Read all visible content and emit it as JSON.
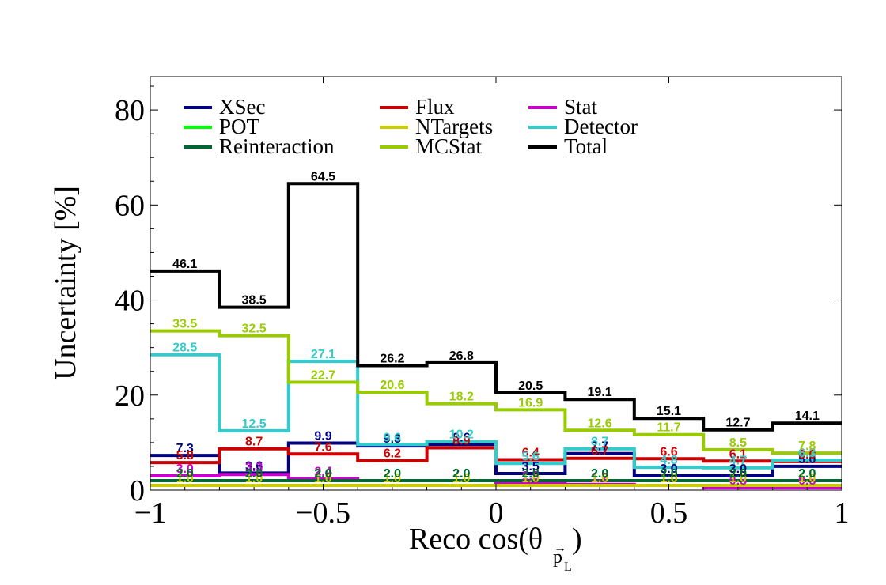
{
  "chart_data": {
    "type": "line",
    "step": true,
    "xlabel": "Reco cos(θ",
    "xlabel_subscript": "p",
    "xlabel_subsubscript": "L",
    "xlabel_close": ")",
    "ylabel": "Uncertainty [%]",
    "xlim": [
      -1,
      1
    ],
    "ylim": [
      0,
      87
    ],
    "xticks": [
      -1,
      -0.5,
      0,
      0.5,
      1
    ],
    "xtick_labels": [
      "−1",
      "−0.5",
      "0",
      "0.5",
      "1"
    ],
    "yticks": [
      0,
      20,
      40,
      60,
      80
    ],
    "ytick_labels": [
      "0",
      "20",
      "40",
      "60",
      "80"
    ],
    "bin_edges": [
      -1,
      -0.8,
      -0.6,
      -0.4,
      -0.2,
      0,
      0.2,
      0.4,
      0.6,
      0.8,
      1
    ],
    "legend_placement": "top",
    "series": [
      {
        "name": "XSec",
        "color": "#000080",
        "values": [
          7.3,
          3.6,
          9.9,
          9.3,
          9.6,
          3.5,
          7.7,
          3.0,
          3.0,
          5.0
        ],
        "labels": [
          "7.3",
          "3.6",
          "9.9",
          "9.3",
          "9.6",
          "3.5",
          "7.7",
          "3.0",
          "3.0",
          "5.0"
        ]
      },
      {
        "name": "Flux",
        "color": "#cc0000",
        "values": [
          5.8,
          8.7,
          7.6,
          6.2,
          8.9,
          6.4,
          6.7,
          6.6,
          6.1,
          6.0
        ],
        "labels": [
          "5.8",
          "8.7",
          "7.6",
          "6.2",
          "8.9",
          "6.4",
          "6.7",
          "6.6",
          "6.1",
          "6.0"
        ]
      },
      {
        "name": "Stat",
        "color": "#cc00cc",
        "values": [
          3.0,
          3.3,
          2.4,
          2.0,
          2.0,
          1.5,
          1.2,
          1.0,
          0.5,
          0.5
        ],
        "labels": [
          "3.0",
          "3.3",
          "2.4",
          "2.0",
          "2.0",
          "1.5",
          "1.2",
          "1.0",
          "0.5",
          "0.5"
        ]
      },
      {
        "name": "POT",
        "color": "#00ff00",
        "values": [
          2.0,
          2.0,
          2.0,
          2.0,
          2.0,
          2.0,
          2.0,
          2.0,
          2.0,
          2.0
        ],
        "labels": [
          "2.0",
          "2.0",
          "2.0",
          "2.0",
          "2.0",
          "2.0",
          "2.0",
          "2.0",
          "2.0",
          "2.0"
        ]
      },
      {
        "name": "NTargets",
        "color": "#cccc00",
        "values": [
          1.0,
          1.0,
          1.0,
          1.0,
          1.0,
          1.0,
          1.0,
          1.0,
          1.0,
          1.0
        ],
        "labels": [
          "1.0",
          "1.0",
          "1.0",
          "1.0",
          "1.0",
          "1.0",
          "1.0",
          "1.0",
          "1.0",
          "1.0"
        ]
      },
      {
        "name": "Detector",
        "color": "#33cccc",
        "values": [
          28.5,
          12.5,
          27.1,
          9.6,
          10.2,
          5.6,
          8.7,
          4.8,
          4.7,
          6.3
        ],
        "labels": [
          "28.5",
          "12.5",
          "27.1",
          "9.6",
          "10.2",
          "5.6",
          "8.7",
          "4.8",
          "4.7",
          "6.3"
        ]
      },
      {
        "name": "Reinteraction",
        "color": "#006633",
        "values": [
          2.0,
          2.0,
          2.0,
          2.0,
          2.0,
          2.0,
          2.0,
          2.0,
          2.0,
          2.0
        ],
        "labels": [
          "2.0",
          "2.0",
          "2.0",
          "2.0",
          "2.0",
          "2.0",
          "2.0",
          "2.0",
          "2.0",
          "2.0"
        ]
      },
      {
        "name": "MCStat",
        "color": "#99cc00",
        "values": [
          33.5,
          32.5,
          22.7,
          20.6,
          18.2,
          16.9,
          12.6,
          11.7,
          8.5,
          7.8
        ],
        "labels": [
          "33.5",
          "32.5",
          "22.7",
          "20.6",
          "18.2",
          "16.9",
          "12.6",
          "11.7",
          "8.5",
          "7.8"
        ]
      },
      {
        "name": "Total",
        "color": "#000000",
        "values": [
          46.1,
          38.5,
          64.5,
          26.2,
          26.8,
          20.5,
          19.1,
          15.1,
          12.7,
          14.1
        ],
        "labels": [
          "46.1",
          "38.5",
          "64.5",
          "26.2",
          "26.8",
          "20.5",
          "19.1",
          "15.1",
          "12.7",
          "14.1"
        ]
      }
    ]
  }
}
